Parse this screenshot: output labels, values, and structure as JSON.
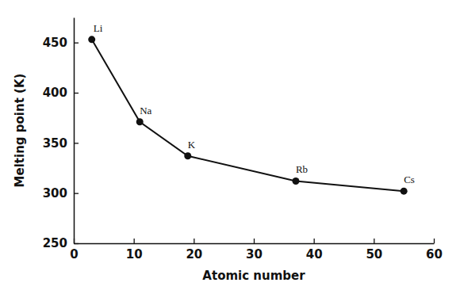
{
  "chart_data": {
    "type": "line",
    "x_label": "Atomic number",
    "y_label": "Melting point (K)",
    "x": [
      3,
      11,
      19,
      37,
      55
    ],
    "values": [
      453,
      371,
      337,
      312,
      302
    ],
    "annotations": [
      "Li",
      "Na",
      "K",
      "Rb",
      "Cs"
    ],
    "color": "#111111",
    "marker": "circle",
    "xlim": [
      0,
      60
    ],
    "xticks": [
      0,
      10,
      20,
      30,
      40,
      50,
      60
    ],
    "ylim": [
      250,
      475
    ],
    "yticks": [
      250,
      300,
      350,
      400,
      450
    ],
    "grid": false
  }
}
